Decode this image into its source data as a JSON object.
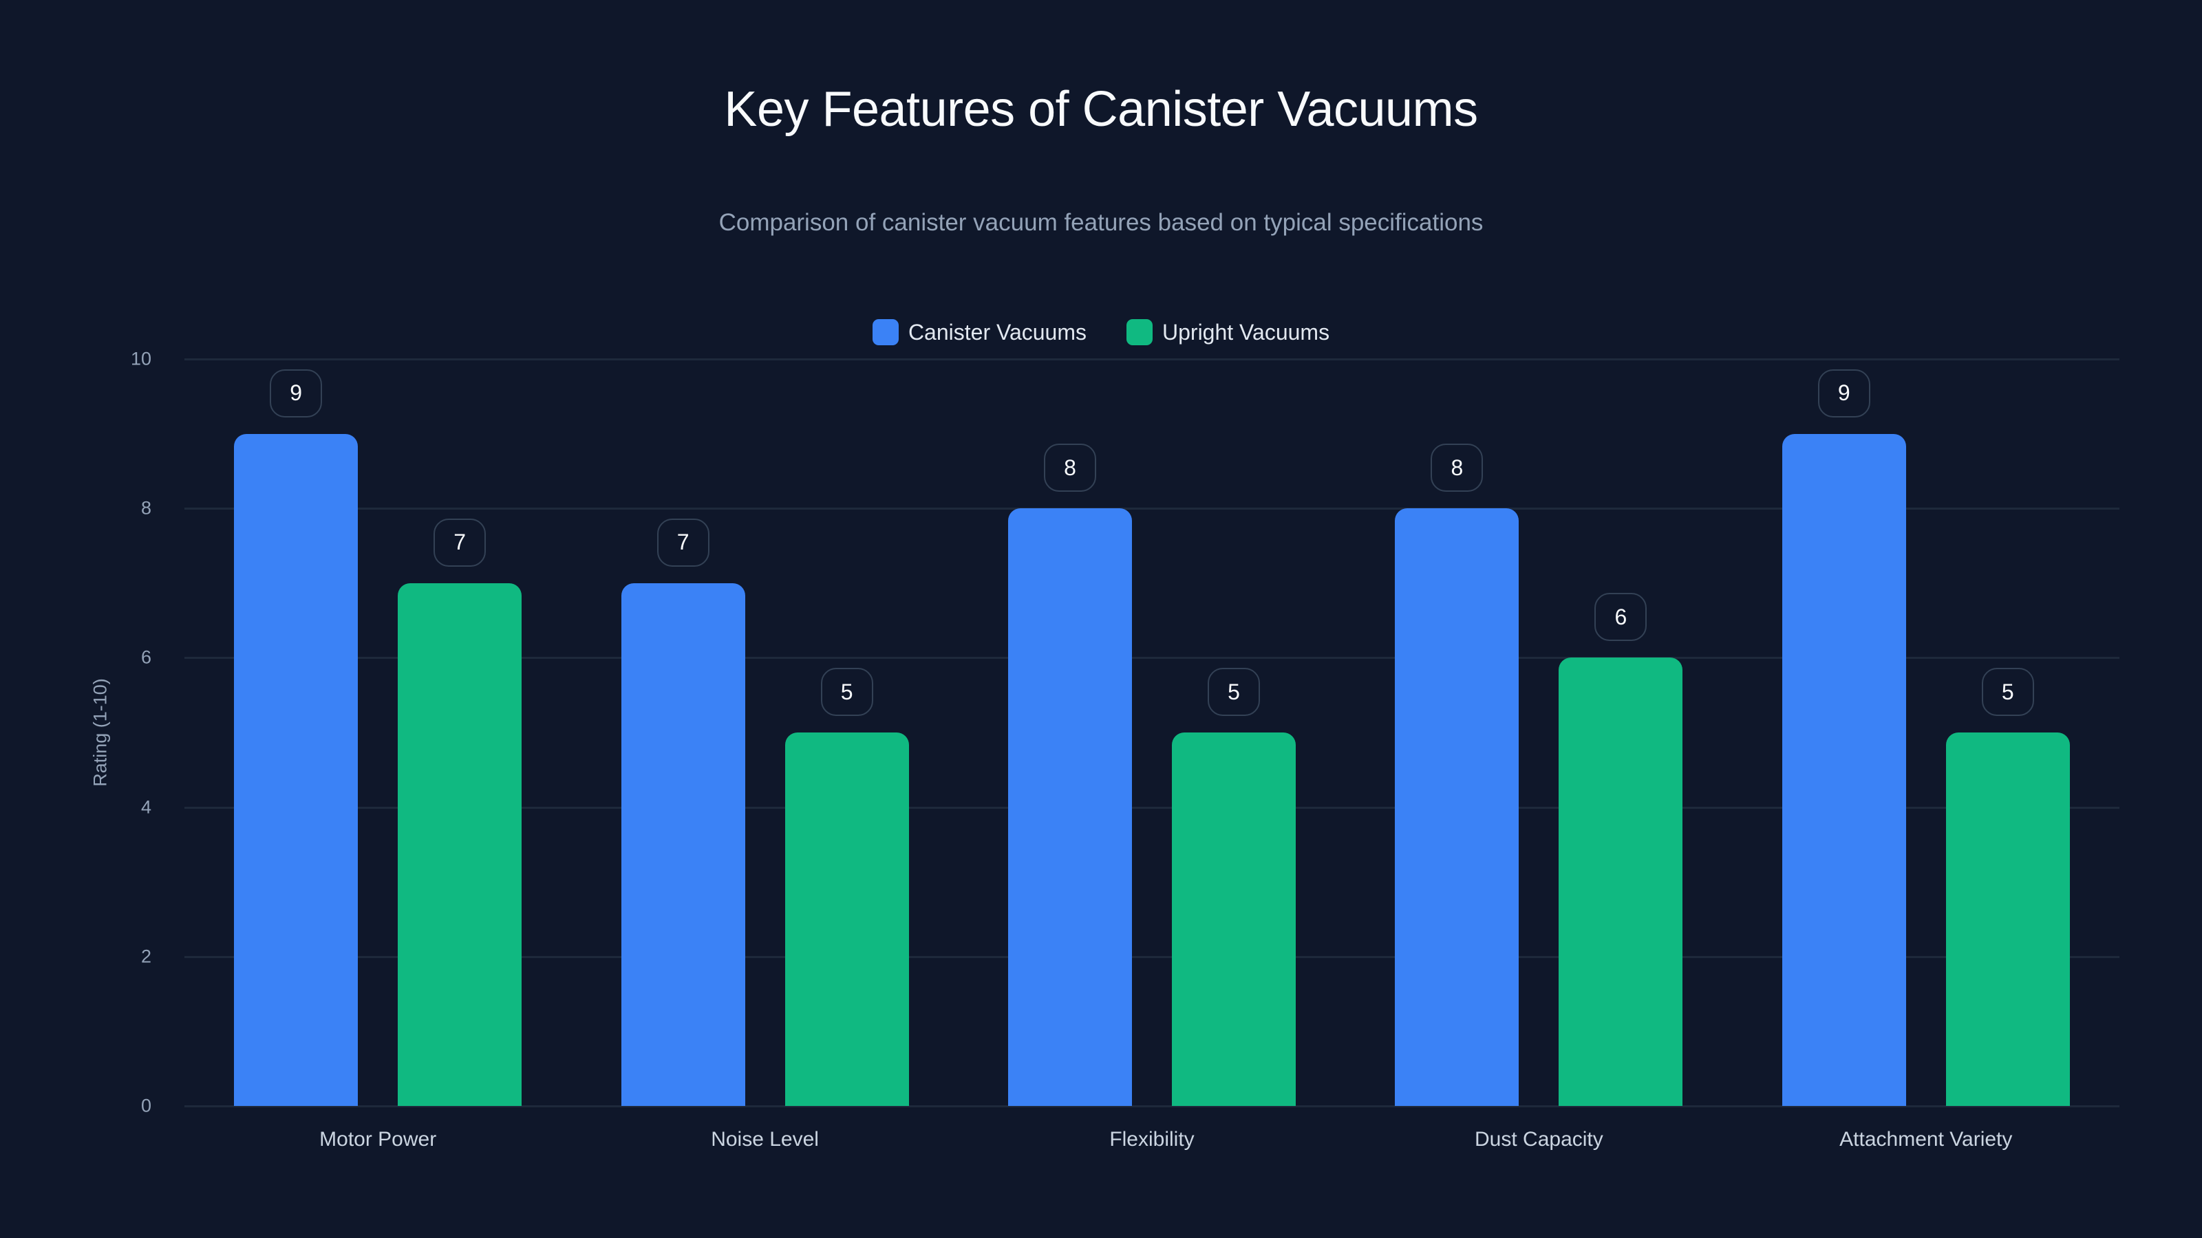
{
  "title": "Key Features of Canister Vacuums",
  "subtitle": "Comparison of canister vacuum features based on typical specifications",
  "legend": [
    {
      "label": "Canister Vacuums",
      "color": "#3b82f6"
    },
    {
      "label": "Upright Vacuums",
      "color": "#10b981"
    }
  ],
  "y_axis": {
    "label": "Rating (1-10)",
    "ticks": [
      "0",
      "2",
      "4",
      "6",
      "8",
      "10"
    ]
  },
  "chart_data": {
    "type": "bar",
    "title": "Key Features of Canister Vacuums",
    "subtitle": "Comparison of canister vacuum features based on typical specifications",
    "categories": [
      "Motor Power",
      "Noise Level",
      "Flexibility",
      "Dust Capacity",
      "Attachment Variety"
    ],
    "series": [
      {
        "name": "Canister Vacuums",
        "color": "#3b82f6",
        "values": [
          9,
          7,
          8,
          8,
          9
        ]
      },
      {
        "name": "Upright Vacuums",
        "color": "#10b981",
        "values": [
          7,
          5,
          5,
          6,
          5
        ]
      }
    ],
    "xlabel": "",
    "ylabel": "Rating (1-10)",
    "ylim": [
      0,
      10
    ],
    "yticks": [
      0,
      2,
      4,
      6,
      8,
      10
    ],
    "grid": true,
    "legend_position": "top-center",
    "data_labels": true
  }
}
